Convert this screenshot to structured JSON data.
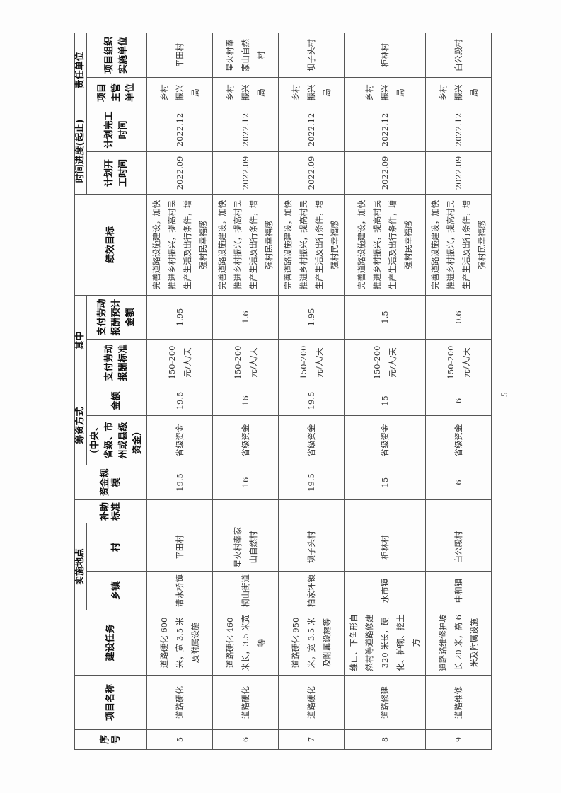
{
  "table": {
    "groups": {
      "location": "实施地点",
      "funding": "筹资方式",
      "of_which": "其中",
      "schedule": "时间进度(起止)",
      "responsible": "责任单位"
    },
    "headers": {
      "no": "序号",
      "name": "项目名称",
      "task": "建设任务",
      "town": "乡镇",
      "village": "村",
      "subsidy": "补助标准",
      "scale": "资金规模",
      "source": "（中央、省级、市州或县级资金）",
      "amount": "金额",
      "labor_std": "支付劳动报酬标准",
      "labor_amt": "支付劳动报酬预计金额",
      "goal": "绩效目标",
      "start": "计划开工时间",
      "end": "计划完工时间",
      "dept": "项目主管单位",
      "impl": "项目组织实施单位"
    },
    "rows": [
      {
        "no": "5",
        "name": "道路硬化",
        "task": "道路硬化 600 米，宽 3.5 米及附属设施",
        "town": "清水桥镇",
        "village": "平田村",
        "subsidy": "",
        "scale": "19.5",
        "source": "省级资金",
        "amount": "19.5",
        "labor_std": "150-200 元/人/天",
        "labor_amt": "1.95",
        "goal": "完善道路设施建设，加快推进乡村振兴，提高村民生产生活及出行条件，增强村民幸福感",
        "start": "2022.09",
        "end": "2022.12",
        "dept": "乡村振兴局",
        "impl": "平田村"
      },
      {
        "no": "6",
        "name": "道路硬化",
        "task": "道路硬化 460 米长，3.5 米宽等",
        "town": "桐山街道",
        "village": "星火村奉家山自然村",
        "subsidy": "",
        "scale": "16",
        "source": "省级资金",
        "amount": "16",
        "labor_std": "150-200 元/人/天",
        "labor_amt": "1.6",
        "goal": "完善道路设施建设，加快推进乡村振兴，提高村民生产生活及出行条件，增强村民幸福感",
        "start": "2022.09",
        "end": "2022.12",
        "dept": "乡村振兴局",
        "impl": "星火村奉家山自然村"
      },
      {
        "no": "7",
        "name": "道路硬化",
        "task": "道路硬化 950 米，宽 3.5 米及附属设施等",
        "town": "柏家坪镇",
        "village": "坝子头村",
        "subsidy": "",
        "scale": "19.5",
        "source": "省级资金",
        "amount": "19.5",
        "labor_std": "150-200 元/人/天",
        "labor_amt": "1.95",
        "goal": "完善道路设施建设，加快推进乡村振兴，提高村民生产生活及出行条件，增强村民幸福感",
        "start": "2022.09",
        "end": "2022.12",
        "dept": "乡村振兴局",
        "impl": "坝子头村"
      },
      {
        "no": "8",
        "name": "道路修建",
        "task": "维山、下鱼形自然村等道路修建 320 米长，硬化、护砌、挖土方",
        "town": "水市镇",
        "village": "柜林村",
        "subsidy": "",
        "scale": "15",
        "source": "省级资金",
        "amount": "15",
        "labor_std": "150-200 元/人/天",
        "labor_amt": "1.5",
        "goal": "完善道路设施建设，加快推进乡村振兴，提高村民生产生活及出行条件，增强村民幸福感",
        "start": "2022.09",
        "end": "2022.12",
        "dept": "乡村振兴局",
        "impl": "柜林村"
      },
      {
        "no": "9",
        "name": "道路维修",
        "task": "道路路维修护坡长 20 米，高 6 米及附属设施",
        "town": "中和镇",
        "village": "白公殿村",
        "subsidy": "",
        "scale": "6",
        "source": "省级资金",
        "amount": "6",
        "labor_std": "150-200 元/人/天",
        "labor_amt": "0.6",
        "goal": "完善道路设施建设，加快推进乡村振兴，提高村民生产生活及出行条件，增强村民幸福感",
        "start": "2022.09",
        "end": "2022.12",
        "dept": "乡村振兴局",
        "impl": "白公殿村"
      }
    ]
  },
  "page_number": "5"
}
